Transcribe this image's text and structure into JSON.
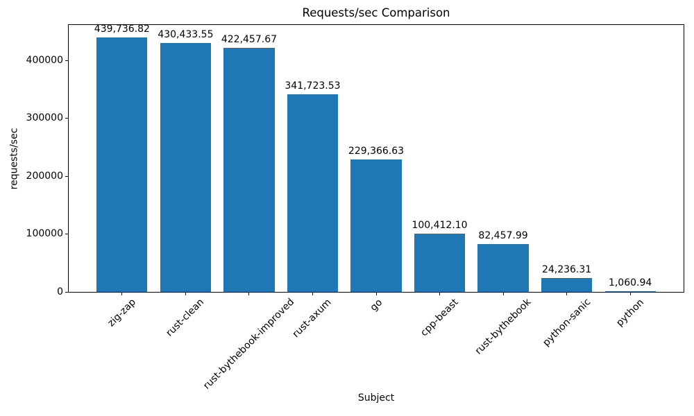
{
  "figure": {
    "background_color": "#ffffff",
    "text_color": "#000000",
    "spine_color": "#000000"
  },
  "chart_data": {
    "type": "bar",
    "title": "Requests/sec Comparison",
    "xlabel": "Subject",
    "ylabel": "requests/sec",
    "categories": [
      "zig-zap",
      "rust-clean",
      "rust-bythebook-improved",
      "rust-axum",
      "go",
      "cpp-beast",
      "rust-bythebook",
      "python-sanic",
      "python"
    ],
    "values": [
      439736.82,
      430433.55,
      422457.67,
      341723.53,
      229366.63,
      100412.1,
      82457.99,
      24236.31,
      1060.94
    ],
    "value_labels": [
      "439,736.82",
      "430,433.55",
      "422,457.67",
      "341,723.53",
      "229,366.63",
      "100,412.10",
      "82,457.99",
      "24,236.31",
      "1,060.94"
    ],
    "yticks": [
      0,
      100000,
      200000,
      300000,
      400000
    ],
    "ytick_labels": [
      "0",
      "100000",
      "200000",
      "300000",
      "400000"
    ],
    "ylim": [
      0,
      461723.66
    ],
    "bar_color": "#1f77b4",
    "bar_width_fraction": 0.8,
    "grid": false,
    "legend": null,
    "xtick_rotation_deg": 45
  }
}
